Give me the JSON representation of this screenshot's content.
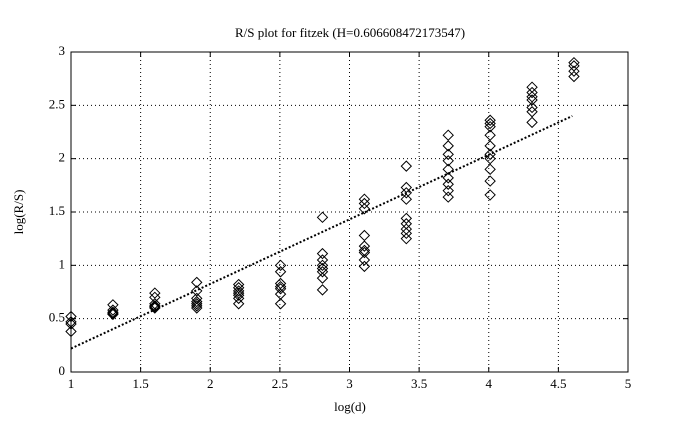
{
  "chart_data": {
    "type": "scatter",
    "title": "R/S plot for fitzek (H=0.606608472173547)",
    "xlabel": "log(d)",
    "ylabel": "log(R/S)",
    "xlim": [
      1,
      5
    ],
    "ylim": [
      0,
      3
    ],
    "xticks": [
      1,
      1.5,
      2,
      2.5,
      3,
      3.5,
      4,
      4.5,
      5
    ],
    "yticks": [
      0,
      0.5,
      1,
      1.5,
      2,
      2.5,
      3
    ],
    "grid": true,
    "series": [
      {
        "type": "scatter",
        "color": "#000000",
        "x": [
          1.0,
          1.0,
          1.0,
          1.0,
          1.301,
          1.301,
          1.301,
          1.301,
          1.301,
          1.602,
          1.602,
          1.602,
          1.602,
          1.602,
          1.602,
          1.903,
          1.903,
          1.903,
          1.903,
          1.903,
          1.903,
          1.903,
          2.204,
          2.204,
          2.204,
          2.204,
          2.204,
          2.204,
          2.204,
          2.505,
          2.505,
          2.505,
          2.505,
          2.505,
          2.505,
          2.505,
          2.806,
          2.806,
          2.806,
          2.806,
          2.806,
          2.806,
          2.806,
          2.806,
          3.107,
          3.107,
          3.107,
          3.107,
          3.107,
          3.107,
          3.107,
          3.107,
          3.107,
          3.408,
          3.408,
          3.408,
          3.408,
          3.408,
          3.408,
          3.408,
          3.408,
          3.408,
          3.709,
          3.709,
          3.709,
          3.709,
          3.709,
          3.709,
          3.709,
          3.709,
          3.709,
          4.01,
          4.01,
          4.01,
          4.01,
          4.01,
          4.01,
          4.01,
          4.01,
          4.01,
          4.01,
          4.311,
          4.311,
          4.311,
          4.311,
          4.311,
          4.311,
          4.311,
          4.612,
          4.612,
          4.612,
          4.612
        ],
        "values": [
          0.52,
          0.47,
          0.45,
          0.38,
          0.63,
          0.58,
          0.56,
          0.55,
          0.54,
          0.74,
          0.7,
          0.64,
          0.62,
          0.61,
          0.6,
          0.84,
          0.76,
          0.69,
          0.66,
          0.64,
          0.62,
          0.6,
          0.82,
          0.79,
          0.76,
          0.74,
          0.72,
          0.69,
          0.64,
          1.0,
          0.94,
          0.83,
          0.8,
          0.78,
          0.73,
          0.64,
          1.45,
          1.11,
          1.05,
          1.0,
          0.97,
          0.94,
          0.88,
          0.77,
          1.62,
          1.58,
          1.53,
          1.28,
          1.18,
          1.14,
          1.12,
          1.05,
          0.99,
          1.93,
          1.73,
          1.68,
          1.62,
          1.44,
          1.39,
          1.34,
          1.3,
          1.25,
          2.22,
          2.12,
          2.04,
          1.98,
          1.9,
          1.82,
          1.76,
          1.7,
          1.64,
          2.36,
          2.33,
          2.3,
          2.22,
          2.12,
          2.04,
          2.0,
          1.9,
          1.79,
          1.66,
          2.67,
          2.62,
          2.58,
          2.55,
          2.48,
          2.44,
          2.34,
          2.9,
          2.87,
          2.82,
          2.77
        ]
      },
      {
        "type": "line",
        "color": "#000000",
        "x": [
          1,
          4.6
        ],
        "values": [
          0.22,
          2.4
        ]
      }
    ]
  }
}
